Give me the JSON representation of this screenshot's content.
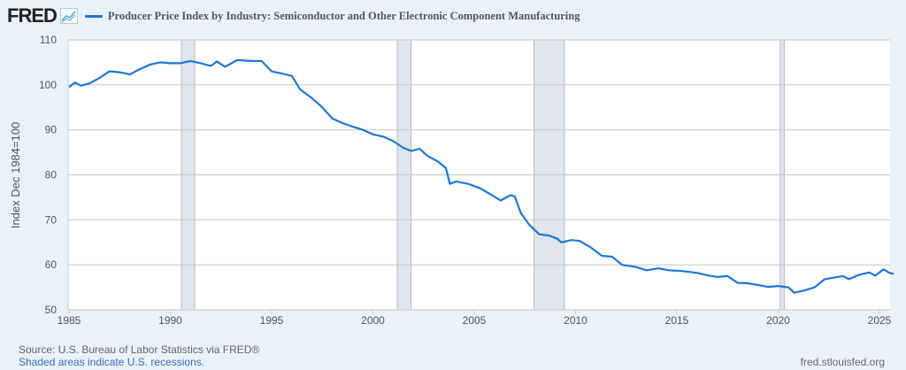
{
  "header": {
    "logo": "FRED",
    "series_title": "Producer Price Index by Industry: Semiconductor and Other Electronic Component Manufacturing"
  },
  "footer": {
    "source": "Source: U.S. Bureau of Labor Statistics via FRED®",
    "recession_note": "Shaded areas indicate U.S. recessions.",
    "url": "fred.stlouisfed.org"
  },
  "colors": {
    "line": "#1f77d4",
    "background": "#e9f1fa",
    "plot_background": "#ffffff",
    "grid": "#cccccc",
    "recession": "#e1e6ee"
  },
  "chart_data": {
    "type": "line",
    "title": "Producer Price Index by Industry: Semiconductor and Other Electronic Component Manufacturing",
    "xlabel": "",
    "ylabel": "Index Dec 1984=100",
    "xlim": [
      1985,
      2025.7
    ],
    "ylim": [
      50,
      110
    ],
    "x_ticks": [
      1985,
      1990,
      1995,
      2000,
      2005,
      2010,
      2015,
      2020,
      2025
    ],
    "y_ticks": [
      50,
      60,
      70,
      80,
      90,
      100,
      110
    ],
    "grid": true,
    "legend_position": "top",
    "recessions": [
      [
        1990.55,
        1991.2
      ],
      [
        2001.2,
        2001.88
      ],
      [
        2007.95,
        2009.45
      ],
      [
        2020.1,
        2020.3
      ]
    ],
    "series": [
      {
        "name": "Producer Price Index by Industry: Semiconductor and Other Electronic Component Manufacturing",
        "x": [
          1985.0,
          1985.3,
          1985.6,
          1986.0,
          1986.5,
          1987.0,
          1987.5,
          1988.0,
          1988.5,
          1989.0,
          1989.5,
          1990.0,
          1990.5,
          1991.0,
          1991.5,
          1992.0,
          1992.3,
          1992.7,
          1993.3,
          1994.0,
          1994.5,
          1995.0,
          1995.5,
          1996.0,
          1996.4,
          1997.0,
          1997.5,
          1998.0,
          1998.5,
          1999.0,
          1999.5,
          2000.0,
          2000.5,
          2001.0,
          2001.5,
          2001.9,
          2002.3,
          2002.7,
          2003.2,
          2003.6,
          2003.8,
          2004.1,
          2004.7,
          2005.3,
          2005.8,
          2006.3,
          2006.8,
          2007.0,
          2007.3,
          2007.7,
          2008.2,
          2008.7,
          2009.1,
          2009.3,
          2009.8,
          2010.2,
          2010.7,
          2011.3,
          2011.8,
          2012.3,
          2013.0,
          2013.5,
          2014.1,
          2014.6,
          2015.3,
          2016.0,
          2016.5,
          2017.0,
          2017.5,
          2018.0,
          2018.5,
          2019.0,
          2019.5,
          2020.0,
          2020.5,
          2020.8,
          2021.3,
          2021.8,
          2022.3,
          2022.8,
          2023.2,
          2023.5,
          2024.0,
          2024.5,
          2024.8,
          2025.2,
          2025.5,
          2025.7
        ],
        "values": [
          99.5,
          100.5,
          99.8,
          100.3,
          101.5,
          103.0,
          102.8,
          102.3,
          103.5,
          104.5,
          105.0,
          104.8,
          104.8,
          105.3,
          104.8,
          104.2,
          105.2,
          104.0,
          105.5,
          105.3,
          105.3,
          103.0,
          102.5,
          102.0,
          99.0,
          97.0,
          95.0,
          92.5,
          91.5,
          90.7,
          90.0,
          89.0,
          88.5,
          87.5,
          86.0,
          85.3,
          85.8,
          84.2,
          83.0,
          81.5,
          78.0,
          78.5,
          78.0,
          77.0,
          75.7,
          74.3,
          75.5,
          75.2,
          71.5,
          69.0,
          66.8,
          66.5,
          65.8,
          65.0,
          65.5,
          65.3,
          64.0,
          62.0,
          61.8,
          60.0,
          59.5,
          58.8,
          59.2,
          58.8,
          58.6,
          58.2,
          57.7,
          57.3,
          57.5,
          56.0,
          55.9,
          55.5,
          55.1,
          55.3,
          55.0,
          53.8,
          54.3,
          55.0,
          56.8,
          57.2,
          57.5,
          56.8,
          57.8,
          58.3,
          57.6,
          59.0,
          58.2,
          58.0
        ]
      }
    ]
  }
}
